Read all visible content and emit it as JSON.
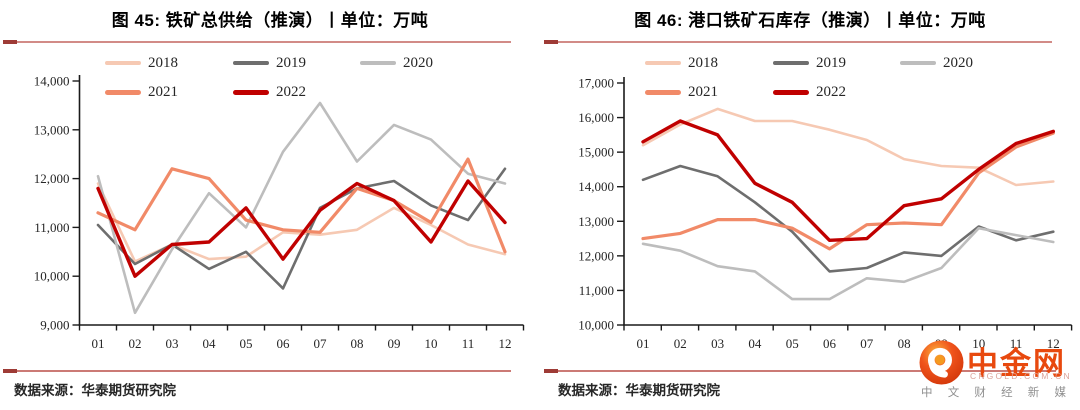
{
  "charts": [
    {
      "title": "图 45: 铁矿总供给（推演）丨单位：万吨",
      "source": "数据来源：华泰期货研究院"
    },
    {
      "title": "图 46: 港口铁矿石库存（推演）丨单位：万吨",
      "source": "数据来源：华泰期货研究院"
    }
  ],
  "chart_data": [
    {
      "type": "line",
      "title": "图 45: 铁矿总供给（推演）丨单位：万吨",
      "unit": "万吨",
      "categories": [
        "01",
        "02",
        "03",
        "04",
        "05",
        "06",
        "07",
        "08",
        "09",
        "10",
        "11",
        "12"
      ],
      "series": [
        {
          "name": "2018",
          "color": "#F6C9B3",
          "width": 2.6,
          "values": [
            11900,
            10300,
            10650,
            10350,
            10400,
            10900,
            10850,
            10950,
            11400,
            11050,
            10650,
            10450
          ]
        },
        {
          "name": "2019",
          "color": "#6E6E6E",
          "width": 2.6,
          "values": [
            11050,
            10250,
            10650,
            10150,
            10500,
            9750,
            11400,
            11800,
            11950,
            11450,
            11150,
            12200
          ]
        },
        {
          "name": "2020",
          "color": "#BDBDBD",
          "width": 2.6,
          "values": [
            12050,
            9250,
            10550,
            11700,
            11000,
            12550,
            13550,
            12350,
            13100,
            12800,
            12100,
            11900
          ]
        },
        {
          "name": "2021",
          "color": "#F18A68",
          "width": 3.2,
          "values": [
            11300,
            10950,
            12200,
            12000,
            11150,
            10950,
            10900,
            11800,
            11550,
            11100,
            12400,
            10500
          ]
        },
        {
          "name": "2022",
          "color": "#C00000",
          "width": 3.4,
          "values": [
            11800,
            10000,
            10650,
            10700,
            11400,
            10350,
            11350,
            11900,
            11550,
            10700,
            11950,
            11100
          ]
        }
      ],
      "ylim": [
        9000,
        14000
      ],
      "ytick_step": 1000,
      "grid": false,
      "legend_position": "top"
    },
    {
      "type": "line",
      "title": "图 46: 港口铁矿石库存（推演）丨单位：万吨",
      "unit": "万吨",
      "categories": [
        "01",
        "02",
        "03",
        "04",
        "05",
        "06",
        "07",
        "08",
        "09",
        "10",
        "11",
        "12"
      ],
      "series": [
        {
          "name": "2018",
          "color": "#F6C9B3",
          "width": 2.6,
          "values": [
            15200,
            15800,
            16250,
            15900,
            15900,
            15650,
            15350,
            14800,
            14600,
            14550,
            14050,
            14150
          ]
        },
        {
          "name": "2019",
          "color": "#6E6E6E",
          "width": 2.6,
          "values": [
            14200,
            14600,
            14300,
            13550,
            12700,
            11550,
            11650,
            12100,
            12000,
            12850,
            12450,
            12700
          ]
        },
        {
          "name": "2020",
          "color": "#BDBDBD",
          "width": 2.6,
          "values": [
            12350,
            12150,
            11700,
            11550,
            10750,
            10750,
            11350,
            11250,
            11650,
            12800,
            12600,
            12400
          ]
        },
        {
          "name": "2021",
          "color": "#F18A68",
          "width": 3.2,
          "values": [
            12500,
            12650,
            13050,
            13050,
            12800,
            12200,
            12900,
            12950,
            12900,
            14400,
            15150,
            15550
          ]
        },
        {
          "name": "2022",
          "color": "#C00000",
          "width": 3.4,
          "values": [
            15300,
            15900,
            15500,
            14100,
            13550,
            12450,
            12500,
            13450,
            13650,
            14500,
            15250,
            15600
          ]
        }
      ],
      "ylim": [
        10000,
        17000
      ],
      "ytick_step": 1000,
      "grid": false,
      "legend_position": "top"
    }
  ],
  "logo": {
    "name": "中金网",
    "domain": "CNGOLD.COM.CN",
    "tagline": "中 文 财 经 新 媒 体"
  },
  "colors": {
    "accent_red": "#C00000",
    "rule_rose": "#CB7A75",
    "rule_dark": "#9E3B36",
    "logo_orange": "#E8490E"
  }
}
